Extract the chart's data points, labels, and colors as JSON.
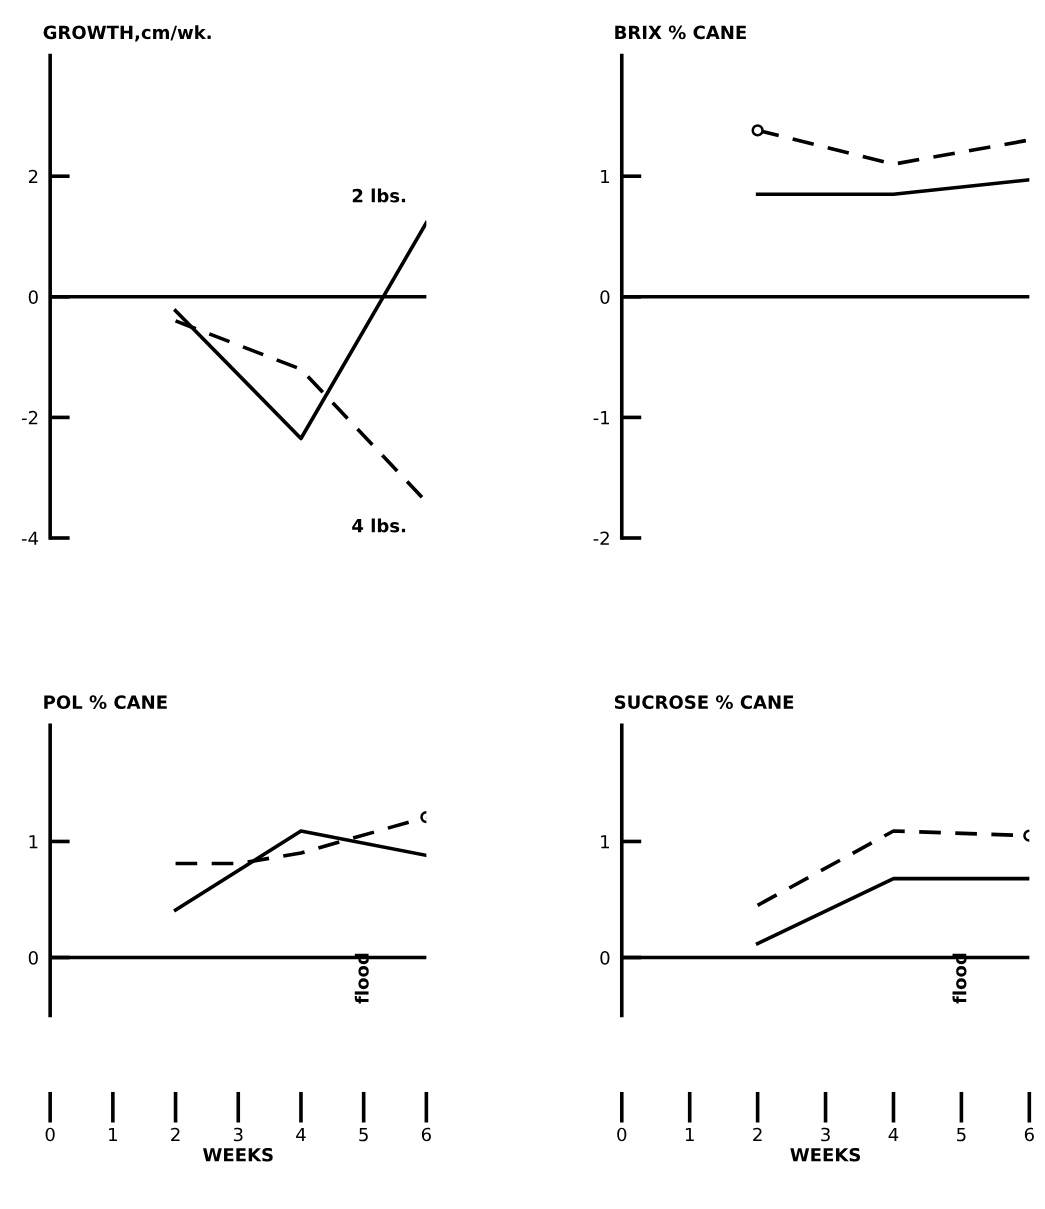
{
  "chart_data": [
    {
      "type": "line",
      "title": "GROWTH,cm/wk.",
      "x": [
        2,
        4,
        6
      ],
      "xlim": [
        0,
        6
      ],
      "ylim": [
        -4,
        4
      ],
      "yticks": [
        -4,
        -2,
        0,
        2
      ],
      "tick_labels": "y",
      "ref_lines": [
        {
          "axis": "y",
          "value": 0,
          "color": "#000000",
          "line_style": "solid"
        }
      ],
      "series": [
        {
          "name": "2 lbs.",
          "color": "#000000",
          "line_style": "solid",
          "values": [
            -0.23,
            -2.35,
            1.23
          ]
        },
        {
          "name": "4 lbs.",
          "color": "#000000",
          "line_style": "dashed",
          "values": [
            -0.4,
            -1.2,
            -3.4
          ]
        }
      ]
    },
    {
      "type": "line",
      "title": "BRIX % CANE",
      "x": [
        2,
        4,
        6
      ],
      "xlim": [
        0,
        6
      ],
      "ylim": [
        -2,
        2
      ],
      "yticks": [
        -2,
        -1,
        0,
        1
      ],
      "tick_labels": "y",
      "ref_lines": [
        {
          "axis": "y",
          "value": 0,
          "color": "#000000",
          "line_style": "solid"
        }
      ],
      "series": [
        {
          "color": "#000000",
          "line_style": "solid",
          "values": [
            0.85,
            0.85,
            0.97
          ]
        },
        {
          "color": "#000000",
          "line_style": "dashed",
          "values": [
            1.38,
            1.1,
            1.3
          ]
        },
        {
          "type": "scatter",
          "marker": "circle",
          "color": "#000000",
          "x": [
            2
          ],
          "values": [
            1.38
          ]
        }
      ]
    },
    {
      "type": "line",
      "title": "POL % CANE",
      "xlabel": "WEEKS",
      "x": [
        2,
        4,
        6
      ],
      "xlim": [
        0,
        6
      ],
      "xticks": [
        0,
        1,
        2,
        3,
        4,
        5,
        6
      ],
      "ylim": [
        -0.5,
        2
      ],
      "yticks": [
        0,
        1
      ],
      "ref_lines": [
        {
          "axis": "y",
          "value": 0,
          "color": "#000000",
          "line_style": "solid"
        }
      ],
      "annotations": [
        "flood"
      ],
      "series": [
        {
          "color": "#000000",
          "line_style": "solid",
          "values": [
            0.41,
            1.09,
            0.88
          ]
        },
        {
          "color": "#000000",
          "line_style": "dashed",
          "x": [
            2,
            3,
            4,
            6
          ],
          "values": [
            0.81,
            0.81,
            0.9,
            1.21
          ]
        },
        {
          "type": "scatter",
          "marker": "circle",
          "color": "#000000",
          "x": [
            6
          ],
          "values": [
            1.21
          ]
        }
      ]
    },
    {
      "type": "line",
      "title": "SUCROSE % CANE",
      "xlabel": "WEEKS",
      "x": [
        2,
        4,
        6
      ],
      "xlim": [
        0,
        6
      ],
      "xticks": [
        0,
        1,
        2,
        3,
        4,
        5,
        6
      ],
      "ylim": [
        -0.5,
        2
      ],
      "yticks": [
        0,
        1
      ],
      "ref_lines": [
        {
          "axis": "y",
          "value": 0,
          "color": "#000000",
          "line_style": "solid"
        }
      ],
      "annotations": [
        "flood"
      ],
      "series": [
        {
          "color": "#000000",
          "line_style": "solid",
          "values": [
            0.12,
            0.68,
            0.68
          ]
        },
        {
          "color": "#000000",
          "line_style": "dashed",
          "values": [
            0.45,
            1.09,
            1.05
          ]
        },
        {
          "type": "scatter",
          "marker": "circle",
          "color": "#000000",
          "x": [
            6
          ],
          "values": [
            1.05
          ]
        }
      ]
    }
  ]
}
